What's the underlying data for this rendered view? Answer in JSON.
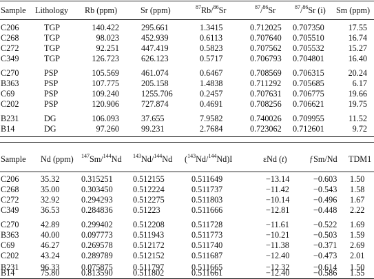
{
  "rb_sr": {
    "headers": {
      "sample": "Sample",
      "lithology": "Lithology",
      "rb": "Rb (ppm)",
      "sr": "Sr (ppm)",
      "rbsr_m1": "87",
      "rbsr_m2": "Rb/",
      "rbsr_m3": "86",
      "rbsr_m4": "Sr",
      "sr87_m1": "87",
      "sr87_m2": "/",
      "sr87_m3": "86",
      "sr87_m4": "Sr",
      "sri_m1": "87",
      "sri_m2": "/",
      "sri_m3": "86",
      "sri_m4": "Sr (i)",
      "sm": "Sm (ppm)"
    },
    "groups": [
      [
        [
          "C206",
          "TGP",
          "140.422",
          "295.661",
          "1.3415",
          "0.712025",
          "0.707350",
          "17.55"
        ],
        [
          "C268",
          "TGP",
          "98.023",
          "452.939",
          "0.6113",
          "0.707640",
          "0.705510",
          "16.74"
        ],
        [
          "C272",
          "TGP",
          "92.251",
          "447.419",
          "0.5823",
          "0.707562",
          "0.705532",
          "15.27"
        ],
        [
          "C349",
          "TGP",
          "126.723",
          "626.123",
          "0.5717",
          "0.706793",
          "0.704801",
          "16.40"
        ]
      ],
      [
        [
          "C270",
          "PSP",
          "105.569",
          "461.074",
          "0.6467",
          "0.708569",
          "0.706315",
          "20.24"
        ],
        [
          "B363",
          "PSP",
          "107.775",
          "205.158",
          "1.4838",
          "0.711292",
          "0.705685",
          "6.17"
        ],
        [
          "C69",
          "PSP",
          "109.240",
          "1255.706",
          "0.2457",
          "0.707631",
          "0.706775",
          "19.66"
        ],
        [
          "C202",
          "PSP",
          "120.906",
          "727.874",
          "0.4691",
          "0.708256",
          "0.706621",
          "19.75"
        ]
      ],
      [
        [
          "B231",
          "DG",
          "106.093",
          "37.655",
          "7.9582",
          "0.740026",
          "0.709955",
          "11.52"
        ],
        [
          "B14",
          "DG",
          "97.260",
          "99.231",
          "2.7684",
          "0.723062",
          "0.712601",
          "9.72"
        ]
      ]
    ]
  },
  "sm_nd": {
    "headers": {
      "sample": "Sample",
      "nd": "Nd (ppm)",
      "smnd_m1": "147",
      "smnd_m2": "Sm/",
      "smnd_m3": "144",
      "smnd_m4": "Nd",
      "ndnd_m1": "143",
      "ndnd_m2": "Nd/",
      "ndnd_m3": "144",
      "ndnd_m4": "Nd",
      "ndi_m1": "(",
      "ndi_m2": "143",
      "ndi_m3": "Nd/",
      "ndi_m4": "144",
      "ndi_m5": "Nd)I",
      "end_m1": "εNd (",
      "end_m2": "t",
      "end_m3": ")",
      "fsmnd": "ƒSm/Nd",
      "tdm": "TDM1"
    },
    "groups": [
      [
        [
          "C206",
          "35.32",
          "0.315251",
          "0.512155",
          "0.511649",
          "−13.14",
          "−0.603",
          "1.50"
        ],
        [
          "C268",
          "35.00",
          "0.303450",
          "0.512224",
          "0.511737",
          "−11.42",
          "−0.543",
          "1.58"
        ],
        [
          "C272",
          "32.92",
          "0.294293",
          "0.512275",
          "0.511803",
          "−10.14",
          "−0.496",
          "1.67"
        ],
        [
          "C349",
          "36.53",
          "0.284836",
          "0.51223",
          "0.511666",
          "−12.81",
          "−0.448",
          "2.22"
        ]
      ],
      [
        [
          "C270",
          "42.89",
          "0.299402",
          "0.512208",
          "0.511728",
          "−11.61",
          "−0.522",
          "1.69"
        ],
        [
          "B363",
          "40.00",
          "0.097773",
          "0.511943",
          "0.511773",
          "−10.21",
          "−0.503",
          "1.59"
        ],
        [
          "C69",
          "46.27",
          "0.269578",
          "0.512172",
          "0.511740",
          "−11.38",
          "−0.371",
          "2.69"
        ],
        [
          "C202",
          "43.24",
          "0.289789",
          "0.512152",
          "0.511687",
          "−12.40",
          "−0.473",
          "2.01"
        ]
      ],
      [
        [
          "B231",
          "96.33",
          "0.075875",
          "0.511797",
          "0.511665",
          "−12.32",
          "−0.614",
          "1.50"
        ],
        [
          "B14",
          "75.80",
          "0.813590",
          "0.511802",
          "0.511661",
          "−12.40",
          "−0.586",
          "1.55"
        ]
      ]
    ]
  }
}
